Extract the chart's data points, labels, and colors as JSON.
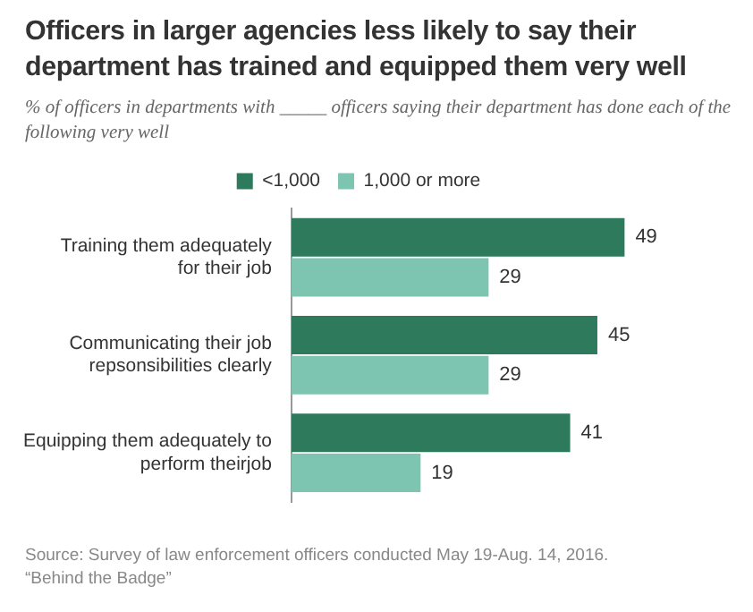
{
  "chart_data": {
    "type": "bar",
    "orientation": "horizontal",
    "title": "Officers in larger agencies less likely to say their department has trained and equipped them very well",
    "subtitle": "% of officers in departments with _____ officers saying their department has done each of the following very well",
    "categories": [
      "Training them adequately\nfor their job",
      "Communicating their job\nrepsonsibilities clearly",
      "Equipping them adequately to\nperform theirjob"
    ],
    "series": [
      {
        "name": "<1,000",
        "color": "#2e7a5c",
        "values": [
          49,
          45,
          41
        ]
      },
      {
        "name": "1,000 or more",
        "color": "#7dc4b1",
        "values": [
          29,
          29,
          19
        ]
      }
    ],
    "data_labels": true,
    "legend": "top",
    "annotations": [
      "Source: Survey of law enforcement officers conducted May 19-Aug. 14, 2016.",
      "“Behind the Badge”"
    ]
  }
}
